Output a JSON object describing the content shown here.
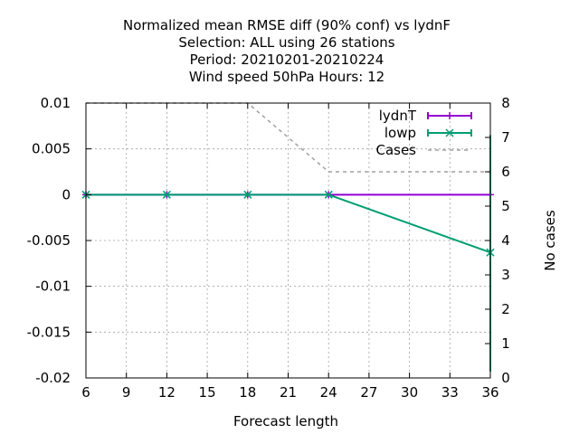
{
  "title_lines": [
    "Normalized mean RMSE diff (90% conf) vs lydnF",
    "Selection: ALL using    26 stations",
    "Period: 20210201-20210224",
    "Wind speed 50hPa   Hours:  12"
  ],
  "chart_data": {
    "type": "line",
    "xlabel": "Forecast length",
    "ylabel": "",
    "y2label": "No cases",
    "xlim": [
      6,
      36
    ],
    "ylim": [
      -0.02,
      0.01
    ],
    "y2lim": [
      0,
      8
    ],
    "xticks": [
      "6",
      "9",
      "12",
      "15",
      "18",
      "21",
      "24",
      "27",
      "30",
      "33",
      "36"
    ],
    "yticks": [
      "0.01",
      "0.005",
      "0",
      "-0.005",
      "-0.01",
      "-0.015",
      "-0.02"
    ],
    "y2ticks": [
      "8",
      "7",
      "6",
      "5",
      "4",
      "3",
      "2",
      "1",
      "0"
    ],
    "grid": true,
    "legend_position": "top-right",
    "series": [
      {
        "name": "lydnT",
        "color": "#9400d3",
        "axis": "y",
        "style": "errorbar",
        "points": [
          {
            "x": 6,
            "y": 0,
            "err": 0
          },
          {
            "x": 12,
            "y": 0,
            "err": 0
          },
          {
            "x": 18,
            "y": 0,
            "err": 0
          },
          {
            "x": 24,
            "y": 0,
            "err": 0
          },
          {
            "x": 36,
            "y": 0,
            "err": 0
          }
        ]
      },
      {
        "name": "lowp",
        "color": "#009e73",
        "axis": "y",
        "style": "errorbar",
        "points": [
          {
            "x": 6,
            "y": 0,
            "err": 0
          },
          {
            "x": 12,
            "y": 0,
            "err": 0
          },
          {
            "x": 18,
            "y": 0,
            "err": 0
          },
          {
            "x": 24,
            "y": 0,
            "err": 0
          },
          {
            "x": 36,
            "y": -0.0063,
            "errlow": -0.0193,
            "errhigh": 0.0065
          }
        ]
      },
      {
        "name": "Cases",
        "color": "#a0a0a0",
        "axis": "y2",
        "style": "dashed",
        "points": [
          {
            "x": 6,
            "y": 8
          },
          {
            "x": 12,
            "y": 8
          },
          {
            "x": 18,
            "y": 8
          },
          {
            "x": 24,
            "y": 6
          },
          {
            "x": 36,
            "y": 6
          }
        ]
      }
    ]
  }
}
